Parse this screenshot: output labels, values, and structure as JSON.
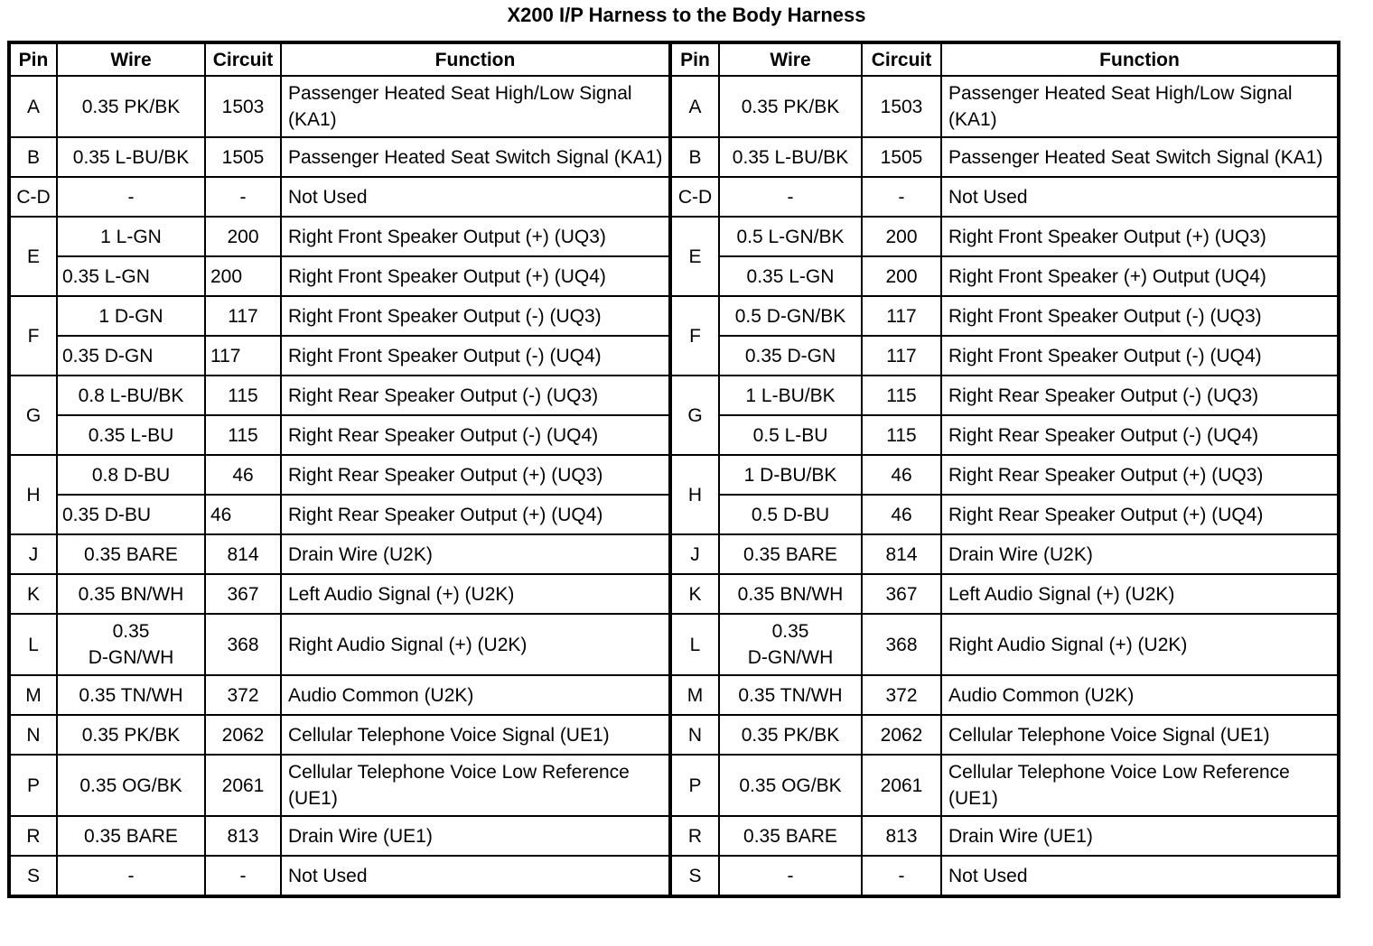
{
  "title": "X200 I/P Harness to the Body Harness",
  "tables": [
    {
      "name": "left",
      "headers": [
        "Pin",
        "Wire",
        "Circuit",
        "Function"
      ],
      "rows": [
        {
          "pin": "A",
          "subrows": [
            {
              "wire": "0.35 PK/BK",
              "circuit": "1503",
              "function": "Passenger Heated Seat High/Low Signal (KA1)"
            }
          ]
        },
        {
          "pin": "B",
          "subrows": [
            {
              "wire": "0.35 L-BU/BK",
              "circuit": "1505",
              "function": "Passenger Heated Seat Switch Signal (KA1)"
            }
          ]
        },
        {
          "pin": "C-D",
          "subrows": [
            {
              "wire": "-",
              "circuit": "-",
              "function": "Not Used"
            }
          ]
        },
        {
          "pin": "E",
          "subrows": [
            {
              "wire": "1 L-GN",
              "circuit": "200",
              "function": "Right Front Speaker Output (+) (UQ3)"
            },
            {
              "wire": "0.35 L-GN",
              "circuit": "200",
              "function": "Right Front Speaker Output (+) (UQ4)",
              "wire_align": "left",
              "circuit_align": "left"
            }
          ]
        },
        {
          "pin": "F",
          "subrows": [
            {
              "wire": "1 D-GN",
              "circuit": "117",
              "function": "Right Front Speaker Output (-) (UQ3)"
            },
            {
              "wire": "0.35 D-GN",
              "circuit": "117",
              "function": "Right Front Speaker Output (-) (UQ4)",
              "wire_align": "left",
              "circuit_align": "left"
            }
          ]
        },
        {
          "pin": "G",
          "subrows": [
            {
              "wire": "0.8 L-BU/BK",
              "circuit": "115",
              "function": "Right Rear Speaker Output (-) (UQ3)"
            },
            {
              "wire": "0.35 L-BU",
              "circuit": "115",
              "function": "Right Rear Speaker Output (-) (UQ4)"
            }
          ]
        },
        {
          "pin": "H",
          "subrows": [
            {
              "wire": "0.8 D-BU",
              "circuit": "46",
              "function": "Right Rear Speaker Output (+) (UQ3)"
            },
            {
              "wire": "0.35 D-BU",
              "circuit": "46",
              "function": "Right Rear Speaker Output (+) (UQ4)",
              "wire_align": "left",
              "circuit_align": "left"
            }
          ]
        },
        {
          "pin": "J",
          "subrows": [
            {
              "wire": "0.35 BARE",
              "circuit": "814",
              "function": "Drain Wire (U2K)"
            }
          ]
        },
        {
          "pin": "K",
          "subrows": [
            {
              "wire": "0.35 BN/WH",
              "circuit": "367",
              "function": "Left Audio Signal (+) (U2K)"
            }
          ]
        },
        {
          "pin": "L",
          "subrows": [
            {
              "wire": "0.35\nD-GN/WH",
              "circuit": "368",
              "function": "Right Audio Signal (+) (U2K)"
            }
          ]
        },
        {
          "pin": "M",
          "subrows": [
            {
              "wire": "0.35 TN/WH",
              "circuit": "372",
              "function": "Audio Common (U2K)"
            }
          ]
        },
        {
          "pin": "N",
          "subrows": [
            {
              "wire": "0.35 PK/BK",
              "circuit": "2062",
              "function": "Cellular Telephone Voice Signal (UE1)"
            }
          ]
        },
        {
          "pin": "P",
          "subrows": [
            {
              "wire": "0.35 OG/BK",
              "circuit": "2061",
              "function": "Cellular Telephone Voice Low Reference (UE1)"
            }
          ]
        },
        {
          "pin": "R",
          "subrows": [
            {
              "wire": "0.35 BARE",
              "circuit": "813",
              "function": "Drain Wire (UE1)"
            }
          ]
        },
        {
          "pin": "S",
          "subrows": [
            {
              "wire": "-",
              "circuit": "-",
              "function": "Not Used"
            }
          ]
        }
      ]
    },
    {
      "name": "right",
      "headers": [
        "Pin",
        "Wire",
        "Circuit",
        "Function"
      ],
      "rows": [
        {
          "pin": "A",
          "subrows": [
            {
              "wire": "0.35 PK/BK",
              "circuit": "1503",
              "function": "Passenger Heated Seat High/Low Signal (KA1)"
            }
          ]
        },
        {
          "pin": "B",
          "subrows": [
            {
              "wire": "0.35 L-BU/BK",
              "circuit": "1505",
              "function": "Passenger Heated Seat Switch Signal (KA1)"
            }
          ]
        },
        {
          "pin": "C-D",
          "subrows": [
            {
              "wire": "-",
              "circuit": "-",
              "function": "Not Used"
            }
          ]
        },
        {
          "pin": "E",
          "subrows": [
            {
              "wire": "0.5 L-GN/BK",
              "circuit": "200",
              "function": "Right Front Speaker Output (+) (UQ3)"
            },
            {
              "wire": "0.35 L-GN",
              "circuit": "200",
              "function": "Right Front Speaker (+) Output (UQ4)"
            }
          ]
        },
        {
          "pin": "F",
          "subrows": [
            {
              "wire": "0.5 D-GN/BK",
              "circuit": "117",
              "function": "Right Front Speaker Output (-) (UQ3)"
            },
            {
              "wire": "0.35 D-GN",
              "circuit": "117",
              "function": "Right Front Speaker Output (-) (UQ4)"
            }
          ]
        },
        {
          "pin": "G",
          "subrows": [
            {
              "wire": "1 L-BU/BK",
              "circuit": "115",
              "function": "Right Rear Speaker Output (-) (UQ3)"
            },
            {
              "wire": "0.5 L-BU",
              "circuit": "115",
              "function": "Right Rear Speaker Output (-) (UQ4)"
            }
          ]
        },
        {
          "pin": "H",
          "subrows": [
            {
              "wire": "1 D-BU/BK",
              "circuit": "46",
              "function": "Right Rear Speaker Output (+) (UQ3)"
            },
            {
              "wire": "0.5 D-BU",
              "circuit": "46",
              "function": "Right Rear Speaker Output (+) (UQ4)"
            }
          ]
        },
        {
          "pin": "J",
          "subrows": [
            {
              "wire": "0.35 BARE",
              "circuit": "814",
              "function": "Drain Wire (U2K)"
            }
          ]
        },
        {
          "pin": "K",
          "subrows": [
            {
              "wire": "0.35 BN/WH",
              "circuit": "367",
              "function": "Left Audio Signal (+) (U2K)"
            }
          ]
        },
        {
          "pin": "L",
          "subrows": [
            {
              "wire": "0.35\nD-GN/WH",
              "circuit": "368",
              "function": "Right Audio Signal (+) (U2K)"
            }
          ]
        },
        {
          "pin": "M",
          "subrows": [
            {
              "wire": "0.35 TN/WH",
              "circuit": "372",
              "function": "Audio Common (U2K)"
            }
          ]
        },
        {
          "pin": "N",
          "subrows": [
            {
              "wire": "0.35 PK/BK",
              "circuit": "2062",
              "function": "Cellular Telephone Voice Signal (UE1)"
            }
          ]
        },
        {
          "pin": "P",
          "subrows": [
            {
              "wire": "0.35 OG/BK",
              "circuit": "2061",
              "function": "Cellular Telephone Voice Low Reference (UE1)"
            }
          ]
        },
        {
          "pin": "R",
          "subrows": [
            {
              "wire": "0.35 BARE",
              "circuit": "813",
              "function": "Drain Wire (UE1)"
            }
          ]
        },
        {
          "pin": "S",
          "subrows": [
            {
              "wire": "-",
              "circuit": "-",
              "function": "Not Used"
            }
          ]
        }
      ]
    }
  ],
  "colors": {
    "page_background": "#ffffff",
    "text": "#000000",
    "border": "#000000"
  }
}
